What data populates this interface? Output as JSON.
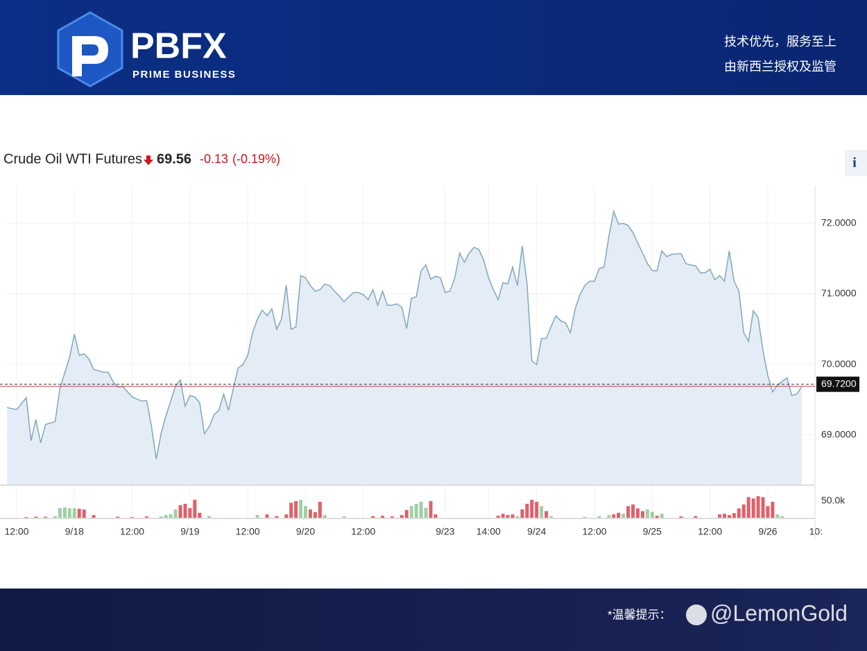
{
  "header": {
    "brand": "PBFX",
    "brand_sub": "PRIME BUSINESS",
    "slogan_1": "技术优先，服务至上",
    "slogan_2": "由新西兰授权及监管"
  },
  "chart_data": {
    "type": "line",
    "title": "Crude Oil WTI Futures",
    "price": "69.56",
    "change": "-0.13",
    "change_pct": "(-0.19%)",
    "info": "i",
    "xlim": [
      -2.3,
      165.8
    ],
    "xticks": [
      {
        "value": 0,
        "label": "12:00"
      },
      {
        "value": 12,
        "label": "9/18"
      },
      {
        "value": 24,
        "label": "12:00"
      },
      {
        "value": 36,
        "label": "9/19"
      },
      {
        "value": 48,
        "label": "12:00"
      },
      {
        "value": 60,
        "label": "9/20"
      },
      {
        "value": 72,
        "label": "12:00"
      },
      {
        "value": 89,
        "label": "9/23"
      },
      {
        "value": 98,
        "label": "14:00"
      },
      {
        "value": 108,
        "label": "9/24"
      },
      {
        "value": 120,
        "label": "12:00"
      },
      {
        "value": 132,
        "label": "9/25"
      },
      {
        "value": 144,
        "label": "12:00"
      },
      {
        "value": 156,
        "label": "9/26"
      },
      {
        "value": 166,
        "label": "10:"
      }
    ],
    "ylim": [
      68.3,
      72.53
    ],
    "yticks": [
      {
        "value": 69,
        "label": "69.0000"
      },
      {
        "value": 70,
        "label": "70.0000"
      },
      {
        "value": 71,
        "label": "71.0000"
      },
      {
        "value": 72,
        "label": "72.0000"
      }
    ],
    "y2lim": [
      0,
      96000
    ],
    "y2ticks": [
      {
        "value": 50000,
        "label": "50.0k"
      }
    ],
    "reference": {
      "value": 69.72,
      "label": "69.7200"
    },
    "grid": true,
    "series": [
      {
        "color": "#7fa6bf",
        "fill": "#e4edf5",
        "x": [
          -2,
          0,
          2,
          3,
          4,
          5,
          6,
          8,
          9,
          11,
          12,
          13,
          14,
          15,
          16,
          17,
          18,
          19,
          20,
          21,
          22,
          24,
          26,
          27,
          28,
          29,
          30,
          31,
          32,
          33,
          34,
          35,
          36,
          37,
          38,
          39,
          40,
          41,
          42,
          43,
          44,
          45,
          46,
          47,
          48,
          49,
          50,
          51,
          52,
          53,
          54,
          55,
          56,
          57,
          58,
          59,
          60,
          61,
          62,
          63,
          64,
          65,
          66,
          67,
          68,
          69,
          70,
          71,
          72,
          73,
          74,
          75,
          76,
          77,
          78,
          79,
          80,
          81,
          82,
          83,
          84,
          85,
          86,
          87,
          88,
          89,
          90,
          91,
          92,
          93,
          94,
          95,
          96,
          97,
          98,
          99,
          100,
          101,
          102,
          103,
          104,
          105,
          106,
          107,
          108,
          109,
          110,
          111,
          112,
          113,
          114,
          115,
          116,
          117,
          118,
          119,
          120,
          121,
          122,
          123,
          124,
          125,
          126,
          127,
          128,
          129,
          130,
          131,
          132,
          133,
          134,
          135,
          136,
          137,
          138,
          139,
          140,
          141,
          142,
          143,
          144,
          145,
          146,
          147,
          148,
          149,
          150,
          151,
          152,
          153,
          154,
          155,
          156,
          157,
          158,
          159,
          160,
          161,
          162,
          163
        ],
        "values": [
          69.39,
          69.36,
          69.53,
          68.92,
          69.22,
          68.89,
          69.15,
          69.19,
          69.66,
          70.1,
          70.43,
          70.13,
          70.15,
          70.08,
          69.93,
          69.91,
          69.89,
          69.89,
          69.76,
          69.68,
          69.69,
          69.54,
          69.48,
          69.49,
          69.12,
          68.66,
          69.02,
          69.27,
          69.48,
          69.7,
          69.78,
          69.41,
          69.56,
          69.54,
          69.46,
          69.02,
          69.12,
          69.29,
          69.35,
          69.58,
          69.35,
          69.66,
          69.95,
          70.0,
          70.13,
          70.45,
          70.64,
          70.77,
          70.69,
          70.79,
          70.5,
          70.64,
          71.12,
          70.5,
          70.53,
          71.26,
          71.23,
          71.12,
          71.04,
          71.06,
          71.14,
          71.12,
          71.04,
          70.97,
          70.89,
          70.96,
          71.02,
          71.02,
          70.99,
          70.92,
          71.06,
          70.84,
          71.04,
          70.84,
          70.84,
          70.86,
          70.81,
          70.51,
          70.94,
          70.96,
          71.33,
          71.41,
          71.21,
          71.25,
          71.23,
          71.02,
          71.04,
          71.23,
          71.58,
          71.45,
          71.58,
          71.66,
          71.63,
          71.48,
          71.23,
          71.06,
          70.92,
          71.16,
          71.14,
          71.38,
          71.12,
          71.68,
          71.14,
          70.05,
          70.0,
          70.37,
          70.37,
          70.54,
          70.69,
          70.62,
          70.59,
          70.45,
          70.79,
          70.99,
          71.12,
          71.18,
          71.18,
          71.36,
          71.38,
          71.82,
          72.17,
          71.99,
          72.0,
          71.97,
          71.87,
          71.72,
          71.58,
          71.43,
          71.33,
          71.33,
          71.61,
          71.53,
          71.56,
          71.57,
          71.57,
          71.43,
          71.41,
          71.4,
          71.3,
          71.3,
          71.35,
          71.2,
          71.26,
          71.18,
          71.61,
          71.18,
          71.04,
          70.45,
          70.33,
          70.76,
          70.66,
          70.2,
          69.84,
          69.61,
          69.71,
          69.76,
          69.81,
          69.56,
          69.58,
          69.68
        ]
      },
      {
        "type": "bar",
        "axis": "y2",
        "color": "#9fd0a6",
        "x": [
          8,
          9,
          10,
          11,
          12,
          30,
          31,
          32,
          33,
          40,
          50,
          59,
          60,
          64,
          68,
          82,
          83,
          84,
          85,
          104,
          109,
          111,
          118,
          121,
          123,
          126,
          131,
          132,
          134,
          158,
          159
        ],
        "values": [
          5000,
          29000,
          31000,
          29000,
          29000,
          4000,
          8000,
          10000,
          25000,
          5000,
          8000,
          54000,
          35000,
          8000,
          4000,
          35000,
          42000,
          48000,
          30000,
          5000,
          35000,
          5000,
          3000,
          5000,
          8000,
          12000,
          25000,
          18000,
          12000,
          10000,
          5000
        ]
      },
      {
        "type": "bar",
        "axis": "y2",
        "color": "#e0606a",
        "x": [
          2,
          4,
          6,
          13,
          14,
          16,
          21,
          24,
          27,
          34,
          35,
          36,
          37,
          38,
          52,
          54,
          56,
          57,
          58,
          61,
          62,
          63,
          74,
          76,
          78,
          80,
          81,
          86,
          87,
          100,
          101,
          102,
          103,
          105,
          106,
          107,
          108,
          110,
          124,
          125,
          127,
          128,
          129,
          130,
          133,
          138,
          141,
          146,
          147,
          148,
          149,
          150,
          151,
          152,
          153,
          154,
          155,
          156,
          157
        ],
        "values": [
          2000,
          3000,
          3000,
          27000,
          25000,
          8000,
          3000,
          2000,
          4000,
          38000,
          42000,
          29000,
          54000,
          15000,
          10000,
          5000,
          10000,
          45000,
          50000,
          25000,
          17000,
          48000,
          5000,
          6000,
          4000,
          8000,
          23000,
          50000,
          10000,
          6000,
          12000,
          8000,
          10000,
          25000,
          42000,
          54000,
          48000,
          20000,
          10000,
          15000,
          35000,
          40000,
          28000,
          20000,
          6000,
          4000,
          5000,
          10000,
          12000,
          8000,
          14000,
          28000,
          40000,
          62000,
          58000,
          65000,
          62000,
          35000,
          48000
        ]
      }
    ]
  },
  "footer": {
    "notice": "*温馨提示：",
    "watermark": "@LemonGold"
  }
}
